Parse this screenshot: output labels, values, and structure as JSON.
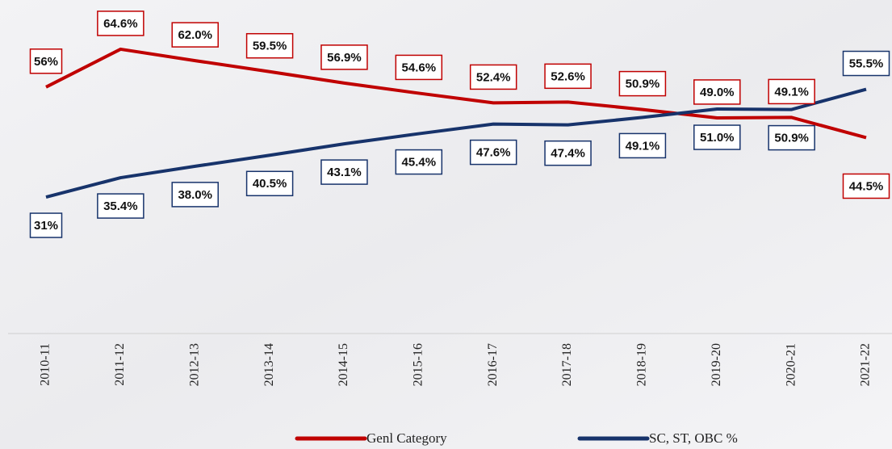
{
  "chart_data": {
    "type": "line",
    "categories": [
      "2010-11",
      "2011-12",
      "2012-13",
      "2013-14",
      "2014-15",
      "2015-16",
      "2016-17",
      "2017-18",
      "2018-19",
      "2019-20",
      "2020-21",
      "2021-22"
    ],
    "series": [
      {
        "name": "Genl Category",
        "color": "#c00000",
        "values": [
          56,
          64.6,
          62.0,
          59.5,
          56.9,
          54.6,
          52.4,
          52.6,
          50.9,
          49.0,
          49.1,
          44.5
        ],
        "value_labels": [
          "56%",
          "64.6%",
          "62.0%",
          "59.5%",
          "56.9%",
          "54.6%",
          "52.4%",
          "52.6%",
          "50.9%",
          "49.0%",
          "49.1%",
          "44.5%"
        ]
      },
      {
        "name": "SC, ST, OBC %",
        "color": "#17336b",
        "values": [
          31,
          35.4,
          38.0,
          40.5,
          43.1,
          45.4,
          47.6,
          47.4,
          49.1,
          51.0,
          50.9,
          55.5
        ],
        "value_labels": [
          "31%",
          "35.4%",
          "38.0%",
          "40.5%",
          "43.1%",
          "45.4%",
          "47.6%",
          "47.4%",
          "49.1%",
          "51.0%",
          "50.9%",
          "55.5%"
        ]
      }
    ]
  }
}
